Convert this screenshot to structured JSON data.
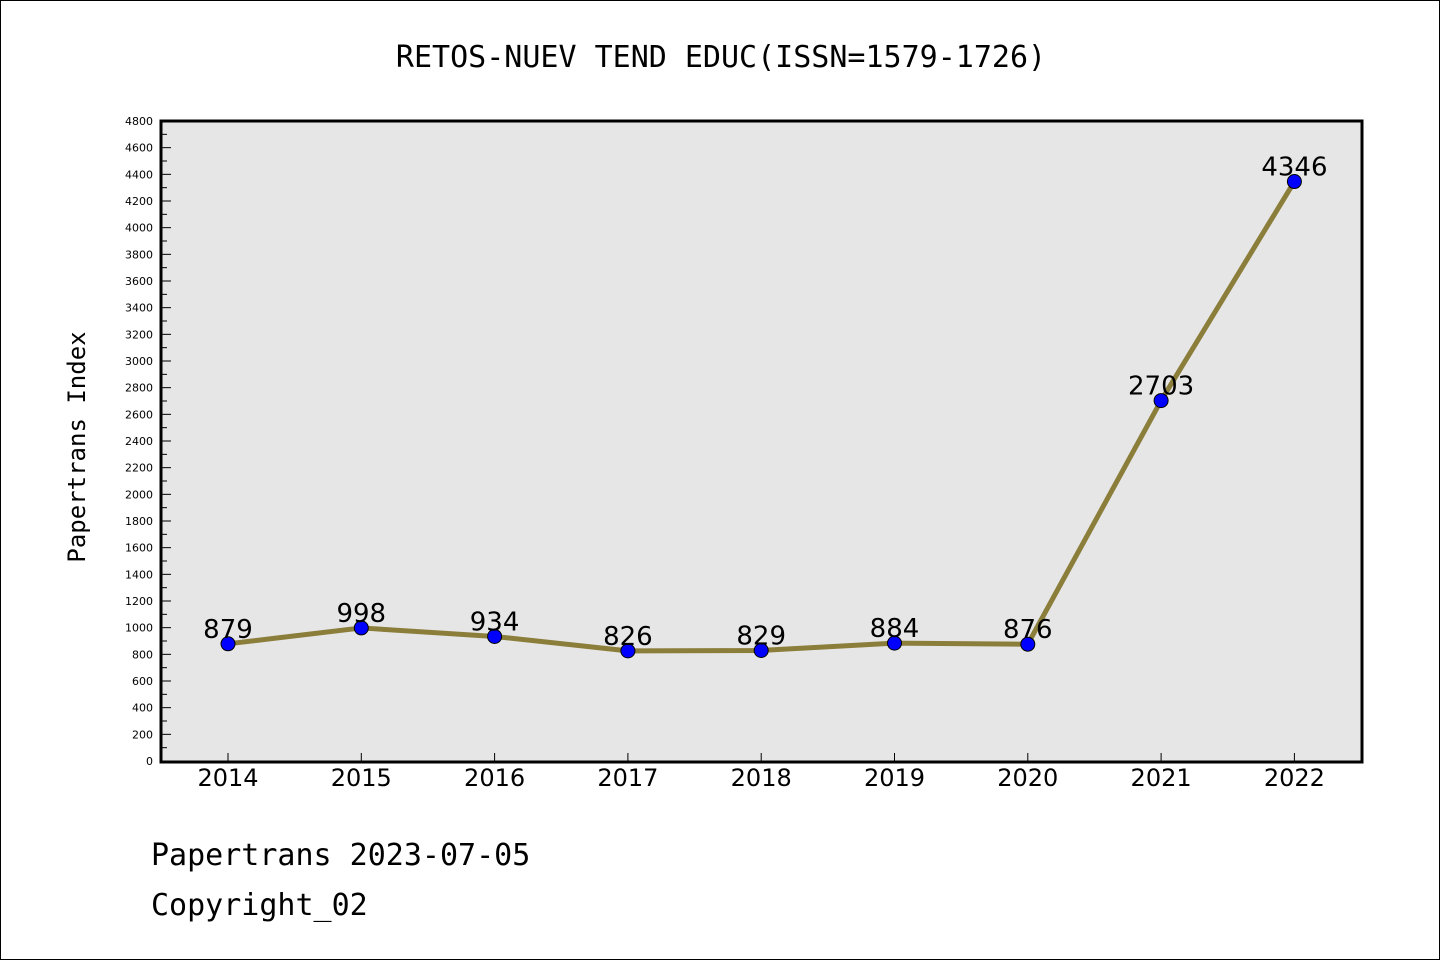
{
  "chart_data": {
    "type": "line",
    "title": "RETOS-NUEV TEND EDUC(ISSN=1579-1726)",
    "xlabel": "",
    "ylabel": "Papertrans Index",
    "categories": [
      "2014",
      "2015",
      "2016",
      "2017",
      "2018",
      "2019",
      "2020",
      "2021",
      "2022"
    ],
    "values": [
      879,
      998,
      934,
      826,
      829,
      884,
      876,
      2703,
      4346
    ],
    "data_labels": [
      "879",
      "998",
      "934",
      "826",
      "829",
      "884",
      "876",
      "2703",
      "4346"
    ],
    "ylim": [
      0,
      4800
    ],
    "yticks": [
      "0",
      "200",
      "400",
      "600",
      "800",
      "1000",
      "1200",
      "1400",
      "1600",
      "1800",
      "2000",
      "2200",
      "2400",
      "2600",
      "2800",
      "3000",
      "3200",
      "3400",
      "3600",
      "3800",
      "4000",
      "4200",
      "4400",
      "4600",
      "4800"
    ],
    "grid": false,
    "colors": {
      "line": "#8B7D3A",
      "marker": "#0000FF",
      "plot_background": "#E6E6E6"
    }
  },
  "footer": {
    "line1": "Papertrans 2023-07-05",
    "line2": "Copyright_02"
  }
}
